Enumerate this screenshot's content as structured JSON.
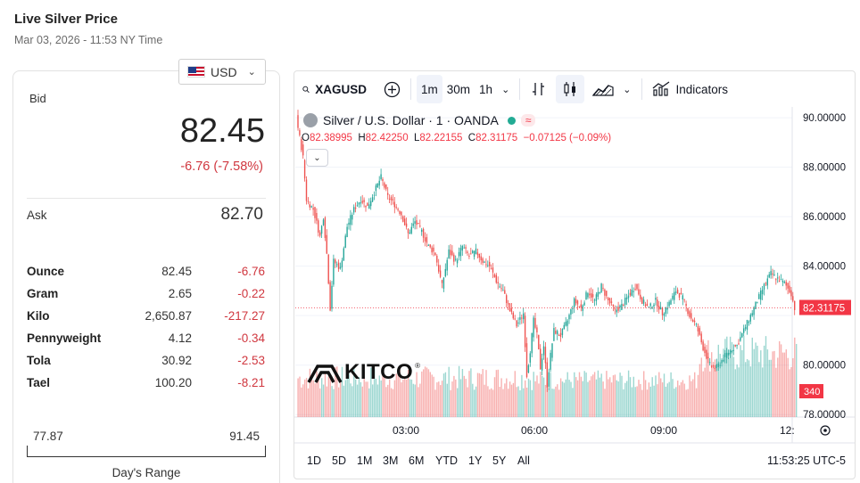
{
  "page": {
    "title": "Live Silver Price",
    "subtitle": "Mar 03, 2026 - 11:53 NY Time"
  },
  "currency": {
    "code": "USD",
    "flag_icon": "us-flag-icon"
  },
  "quote": {
    "bid_label": "Bid",
    "bid": "82.45",
    "change": "-6.76 (-7.58%)",
    "ask_label": "Ask",
    "ask": "82.70"
  },
  "units": [
    {
      "name": "Ounce",
      "price": "82.45",
      "change": "-6.76"
    },
    {
      "name": "Gram",
      "price": "2.65",
      "change": "-0.22"
    },
    {
      "name": "Kilo",
      "price": "2,650.87",
      "change": "-217.27"
    },
    {
      "name": "Pennyweight",
      "price": "4.12",
      "change": "-0.34"
    },
    {
      "name": "Tola",
      "price": "30.92",
      "change": "-2.53"
    },
    {
      "name": "Tael",
      "price": "100.20",
      "change": "-8.21"
    }
  ],
  "days_range": {
    "low": "77.87",
    "high": "91.45",
    "label": "Day's Range"
  },
  "chart_toolbar": {
    "symbol": "XAGUSD",
    "intervals": [
      "1m",
      "30m",
      "1h"
    ],
    "active_interval": "1m",
    "indicators_label": "Indicators"
  },
  "chart_legend": {
    "name": "Silver / U.S. Dollar · 1 · OANDA",
    "badge": "≈",
    "o_label": "O",
    "o": "82.38995",
    "h_label": "H",
    "h": "82.42250",
    "l_label": "L",
    "l": "82.22155",
    "c_label": "C",
    "c": "82.31175",
    "chg": "−0.07125 (−0.09%)"
  },
  "chart_bottom": {
    "ranges": [
      "1D",
      "5D",
      "1M",
      "3M",
      "6M",
      "YTD",
      "1Y",
      "5Y",
      "All"
    ],
    "clock": "11:53:25 UTC-5"
  },
  "watermark": "KITCO",
  "colors": {
    "up": "#26a69a",
    "down": "#ef5350",
    "accent_red": "#d0373f",
    "price_tag": "#f23645"
  },
  "chart_data": {
    "type": "candlestick",
    "symbol": "XAGUSD",
    "interval": "1m",
    "y_axis_labels": [
      "90.00000",
      "88.00000",
      "86.00000",
      "84.00000",
      "82.00000",
      "80.00000",
      "78.00000"
    ],
    "x_axis_labels": [
      "03:00",
      "06:00",
      "09:00",
      "12:"
    ],
    "ylim": [
      77.9,
      90.4
    ],
    "last_price": "82.31175",
    "volume_label": "340",
    "price_path": [
      [
        0,
        90.0
      ],
      [
        4,
        88.4
      ],
      [
        6,
        86.7
      ],
      [
        10,
        86.3
      ],
      [
        14,
        85.2
      ],
      [
        16,
        86.0
      ],
      [
        18,
        84.5
      ],
      [
        20,
        82.3
      ],
      [
        22,
        84.2
      ],
      [
        26,
        83.9
      ],
      [
        30,
        85.6
      ],
      [
        34,
        86.3
      ],
      [
        38,
        86.7
      ],
      [
        42,
        86.4
      ],
      [
        46,
        87.0
      ],
      [
        50,
        87.6
      ],
      [
        54,
        86.8
      ],
      [
        58,
        86.5
      ],
      [
        62,
        86.1
      ],
      [
        66,
        85.3
      ],
      [
        70,
        85.8
      ],
      [
        74,
        85.4
      ],
      [
        78,
        84.8
      ],
      [
        82,
        84.5
      ],
      [
        86,
        83.2
      ],
      [
        90,
        84.6
      ],
      [
        94,
        84.2
      ],
      [
        98,
        84.8
      ],
      [
        102,
        84.4
      ],
      [
        106,
        84.6
      ],
      [
        110,
        84.2
      ],
      [
        114,
        84.0
      ],
      [
        118,
        83.4
      ],
      [
        122,
        83.0
      ],
      [
        126,
        82.2
      ],
      [
        130,
        81.6
      ],
      [
        134,
        82.1
      ],
      [
        136,
        79.6
      ],
      [
        138,
        80.6
      ],
      [
        140,
        81.8
      ],
      [
        142,
        81.2
      ],
      [
        144,
        79.9
      ],
      [
        146,
        80.8
      ],
      [
        148,
        79.2
      ],
      [
        150,
        80.4
      ],
      [
        152,
        81.4
      ],
      [
        156,
        81.2
      ],
      [
        160,
        81.8
      ],
      [
        164,
        82.6
      ],
      [
        168,
        82.3
      ],
      [
        172,
        83.0
      ],
      [
        176,
        82.6
      ],
      [
        180,
        83.2
      ],
      [
        184,
        82.6
      ],
      [
        188,
        82.2
      ],
      [
        192,
        82.4
      ],
      [
        196,
        82.8
      ],
      [
        200,
        83.2
      ],
      [
        204,
        82.6
      ],
      [
        208,
        82.3
      ],
      [
        212,
        82.6
      ],
      [
        216,
        82.1
      ],
      [
        220,
        82.5
      ],
      [
        224,
        83.0
      ],
      [
        228,
        82.7
      ],
      [
        232,
        82.0
      ],
      [
        236,
        81.6
      ],
      [
        240,
        80.7
      ],
      [
        244,
        80.0
      ],
      [
        248,
        79.9
      ],
      [
        252,
        80.3
      ],
      [
        256,
        80.6
      ],
      [
        260,
        80.8
      ],
      [
        264,
        81.4
      ],
      [
        268,
        82.0
      ],
      [
        272,
        82.6
      ],
      [
        276,
        83.2
      ],
      [
        280,
        83.7
      ],
      [
        284,
        83.5
      ],
      [
        288,
        83.3
      ],
      [
        292,
        82.9
      ],
      [
        294,
        82.3
      ]
    ]
  }
}
